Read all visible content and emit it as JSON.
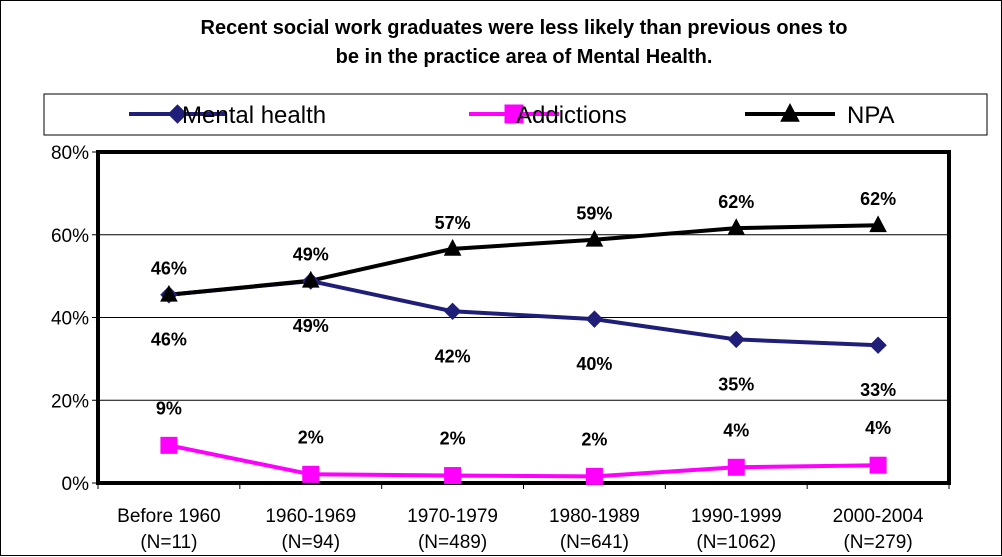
{
  "chart_data": {
    "type": "line",
    "title": "Recent social work graduates were less likely than previous ones to be in the practice area of Mental Health.",
    "title_lines": [
      "Recent social work graduates were less likely than previous ones to",
      "be in the practice area of Mental Health."
    ],
    "categories": [
      "Before 1960 (N=11)",
      "1960-1969 (N=94)",
      "1970-1979 (N=489)",
      "1980-1989 (N=641)",
      "1990-1999 (N=1062)",
      "2000-2004 (N=279)"
    ],
    "category_lines": [
      [
        "Before 1960",
        "(N=11)"
      ],
      [
        "1960-1969",
        "(N=94)"
      ],
      [
        "1970-1979",
        "(N=489)"
      ],
      [
        "1980-1989",
        "(N=641)"
      ],
      [
        "1990-1999",
        "(N=1062)"
      ],
      [
        "2000-2004",
        "(N=279)"
      ]
    ],
    "series": [
      {
        "name": "Mental health",
        "values": [
          45.5,
          48.8,
          41.5,
          39.6,
          34.7,
          33.3
        ],
        "labels": [
          "46%",
          "49%",
          "42%",
          "40%",
          "35%",
          "33%"
        ],
        "color": "#1f1f7a",
        "marker": "diamond",
        "label_position": "below"
      },
      {
        "name": "Addictions",
        "values": [
          9.1,
          2.1,
          1.8,
          1.6,
          3.8,
          4.3
        ],
        "labels": [
          "9%",
          "2%",
          "2%",
          "2%",
          "4%",
          "4%"
        ],
        "color": "#ff00ff",
        "marker": "square",
        "label_position": "above"
      },
      {
        "name": "NPA",
        "values": [
          45.5,
          48.9,
          56.6,
          58.8,
          61.6,
          62.3
        ],
        "labels": [
          "46%",
          "49%",
          "57%",
          "59%",
          "62%",
          "62%"
        ],
        "color": "#000000",
        "marker": "triangle",
        "label_position": "above"
      }
    ],
    "y_ticks": [
      "0%",
      "20%",
      "40%",
      "60%",
      "80%"
    ],
    "ylim": [
      0,
      80
    ],
    "grid": true,
    "legend_position": "top"
  }
}
